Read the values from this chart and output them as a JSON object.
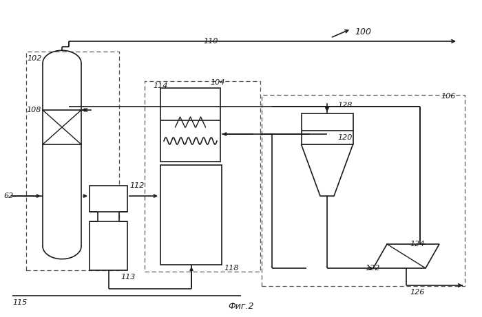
{
  "title": "Фиг.2",
  "label_100": "100",
  "label_102": "102",
  "label_104": "104",
  "label_106": "106",
  "label_108": "108",
  "label_110": "110",
  "label_112": "112",
  "label_113": "113",
  "label_114": "114",
  "label_115": "115",
  "label_118": "118",
  "label_120": "120",
  "label_122": "122",
  "label_124": "124",
  "label_126": "126",
  "label_128": "128",
  "label_62": "62",
  "bg_color": "#ffffff",
  "line_color": "#1a1a1a",
  "dash_color": "#555555"
}
